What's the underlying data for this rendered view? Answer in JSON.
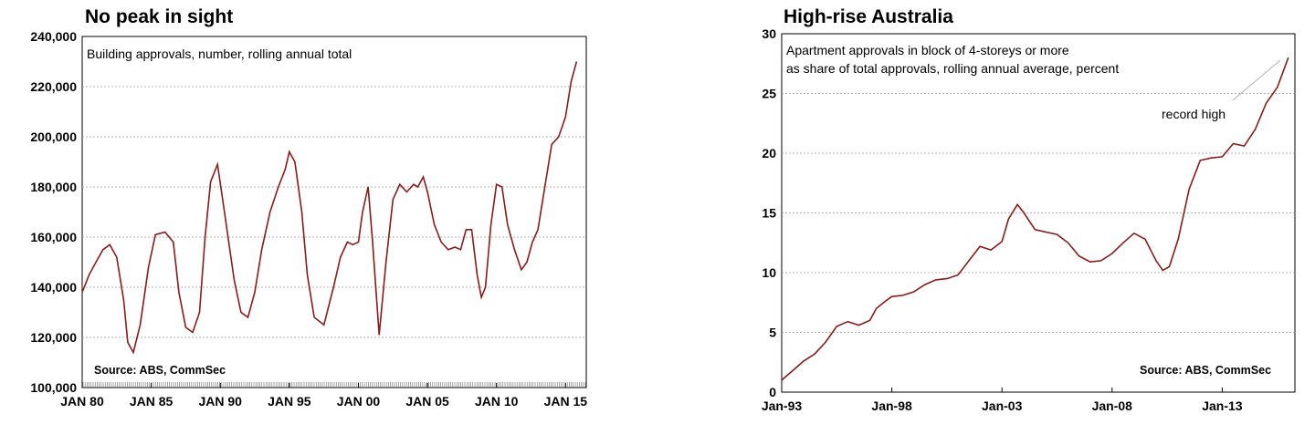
{
  "left": {
    "title": "No peak in sight",
    "subtitle": "Building approvals, number, rolling annual total",
    "source": "Source: ABS, CommSec",
    "line_color": "#8b1a1a",
    "chart_data": {
      "type": "line",
      "title": "No peak in sight",
      "ylabel": "",
      "xlabel": "",
      "ylim": [
        100000,
        240000
      ],
      "yticks": [
        "100,000",
        "120,000",
        "140,000",
        "160,000",
        "180,000",
        "200,000",
        "220,000",
        "240,000"
      ],
      "ytick_values": [
        100000,
        120000,
        140000,
        160000,
        180000,
        200000,
        220000,
        240000
      ],
      "xticks": [
        "JAN 80",
        "JAN 85",
        "JAN 90",
        "JAN 95",
        "JAN 00",
        "JAN 05",
        "JAN 10",
        "JAN 15"
      ],
      "xtick_values": [
        1980,
        1985,
        1990,
        1995,
        2000,
        2005,
        2010,
        2015
      ],
      "xlim": [
        1980,
        2016.5
      ],
      "grid": true,
      "series": [
        {
          "x": [
            1980.0,
            1980.5,
            1981.0,
            1981.5,
            1982.0,
            1982.5,
            1983.0,
            1983.3,
            1983.7,
            1984.2,
            1984.8,
            1985.3,
            1986.0,
            1986.6,
            1987.0,
            1987.5,
            1988.0,
            1988.5,
            1988.9,
            1989.3,
            1989.8,
            1990.3,
            1991.0,
            1991.5,
            1992.0,
            1992.5,
            1993.0,
            1993.6,
            1994.2,
            1994.7,
            1995.0,
            1995.4,
            1995.9,
            1996.3,
            1996.8,
            1997.5,
            1998.2,
            1998.7,
            1999.2,
            1999.6,
            2000.0,
            2000.3,
            2000.7,
            2001.0,
            2001.5,
            2002.0,
            2002.5,
            2003.0,
            2003.5,
            2004.0,
            2004.3,
            2004.7,
            2005.0,
            2005.5,
            2006.0,
            2006.5,
            2007.0,
            2007.4,
            2007.8,
            2008.2,
            2008.6,
            2008.9,
            2009.2,
            2009.6,
            2010.0,
            2010.4,
            2010.8,
            2011.3,
            2011.8,
            2012.2,
            2012.6,
            2013.0,
            2013.5,
            2014.0,
            2014.5,
            2015.0,
            2015.4,
            2015.8
          ],
          "y": [
            138000,
            145000,
            150000,
            155000,
            157000,
            152000,
            135000,
            118000,
            114000,
            125000,
            148000,
            161000,
            162000,
            158000,
            138000,
            124000,
            122000,
            130000,
            160000,
            182000,
            189000,
            170000,
            143000,
            130000,
            128000,
            138000,
            155000,
            170000,
            180000,
            187000,
            194000,
            190000,
            170000,
            145000,
            128000,
            125000,
            140000,
            152000,
            158000,
            157000,
            158000,
            170000,
            180000,
            160000,
            121000,
            150000,
            175000,
            181000,
            178000,
            181000,
            180000,
            184000,
            178000,
            165000,
            158000,
            155000,
            156000,
            155000,
            163000,
            163000,
            145000,
            136000,
            140000,
            165000,
            181000,
            180000,
            165000,
            155000,
            147000,
            150000,
            158000,
            163000,
            180000,
            197000,
            200000,
            208000,
            222000,
            230000
          ]
        }
      ]
    }
  },
  "right": {
    "title": "High-rise Australia",
    "subtitle_line1": "Apartment approvals in block of 4-storeys or more",
    "subtitle_line2": "as share of total approvals, rolling annual average, percent",
    "annotation": "record high",
    "source": "Source: ABS, CommSec",
    "line_color": "#8b1a1a",
    "chart_data": {
      "type": "line",
      "title": "High-rise Australia",
      "ylabel": "",
      "xlabel": "",
      "ylim": [
        0,
        30
      ],
      "yticks": [
        "0",
        "5",
        "10",
        "15",
        "20",
        "25",
        "30"
      ],
      "ytick_values": [
        0,
        5,
        10,
        15,
        20,
        25,
        30
      ],
      "xticks": [
        "Jan-93",
        "Jan-98",
        "Jan-03",
        "Jan-08",
        "Jan-13"
      ],
      "xtick_values": [
        1993,
        1998,
        2003,
        2008,
        2013
      ],
      "xlim": [
        1993,
        2016.3
      ],
      "grid": true,
      "series": [
        {
          "x": [
            1993.0,
            1993.5,
            1994.0,
            1994.5,
            1995.0,
            1995.5,
            1996.0,
            1996.5,
            1997.0,
            1997.3,
            1997.7,
            1998.0,
            1998.5,
            1999.0,
            1999.5,
            2000.0,
            2000.5,
            2001.0,
            2001.5,
            2002.0,
            2002.5,
            2003.0,
            2003.3,
            2003.7,
            2004.0,
            2004.5,
            2005.0,
            2005.5,
            2006.0,
            2006.5,
            2007.0,
            2007.5,
            2008.0,
            2008.5,
            2009.0,
            2009.5,
            2010.0,
            2010.3,
            2010.6,
            2011.0,
            2011.5,
            2012.0,
            2012.5,
            2013.0,
            2013.5,
            2014.0,
            2014.5,
            2015.0,
            2015.5,
            2016.0
          ],
          "y": [
            1.0,
            1.8,
            2.6,
            3.2,
            4.2,
            5.5,
            5.9,
            5.6,
            6.0,
            7.0,
            7.6,
            8.0,
            8.1,
            8.4,
            9.0,
            9.4,
            9.5,
            9.8,
            11.0,
            12.2,
            11.9,
            12.6,
            14.5,
            15.7,
            15.0,
            13.6,
            13.4,
            13.2,
            12.5,
            11.4,
            10.9,
            11.0,
            11.6,
            12.5,
            13.3,
            12.8,
            11.0,
            10.2,
            10.5,
            12.8,
            17.0,
            19.4,
            19.6,
            19.7,
            20.8,
            20.6,
            22.0,
            24.2,
            25.5,
            28.0
          ]
        }
      ]
    }
  }
}
